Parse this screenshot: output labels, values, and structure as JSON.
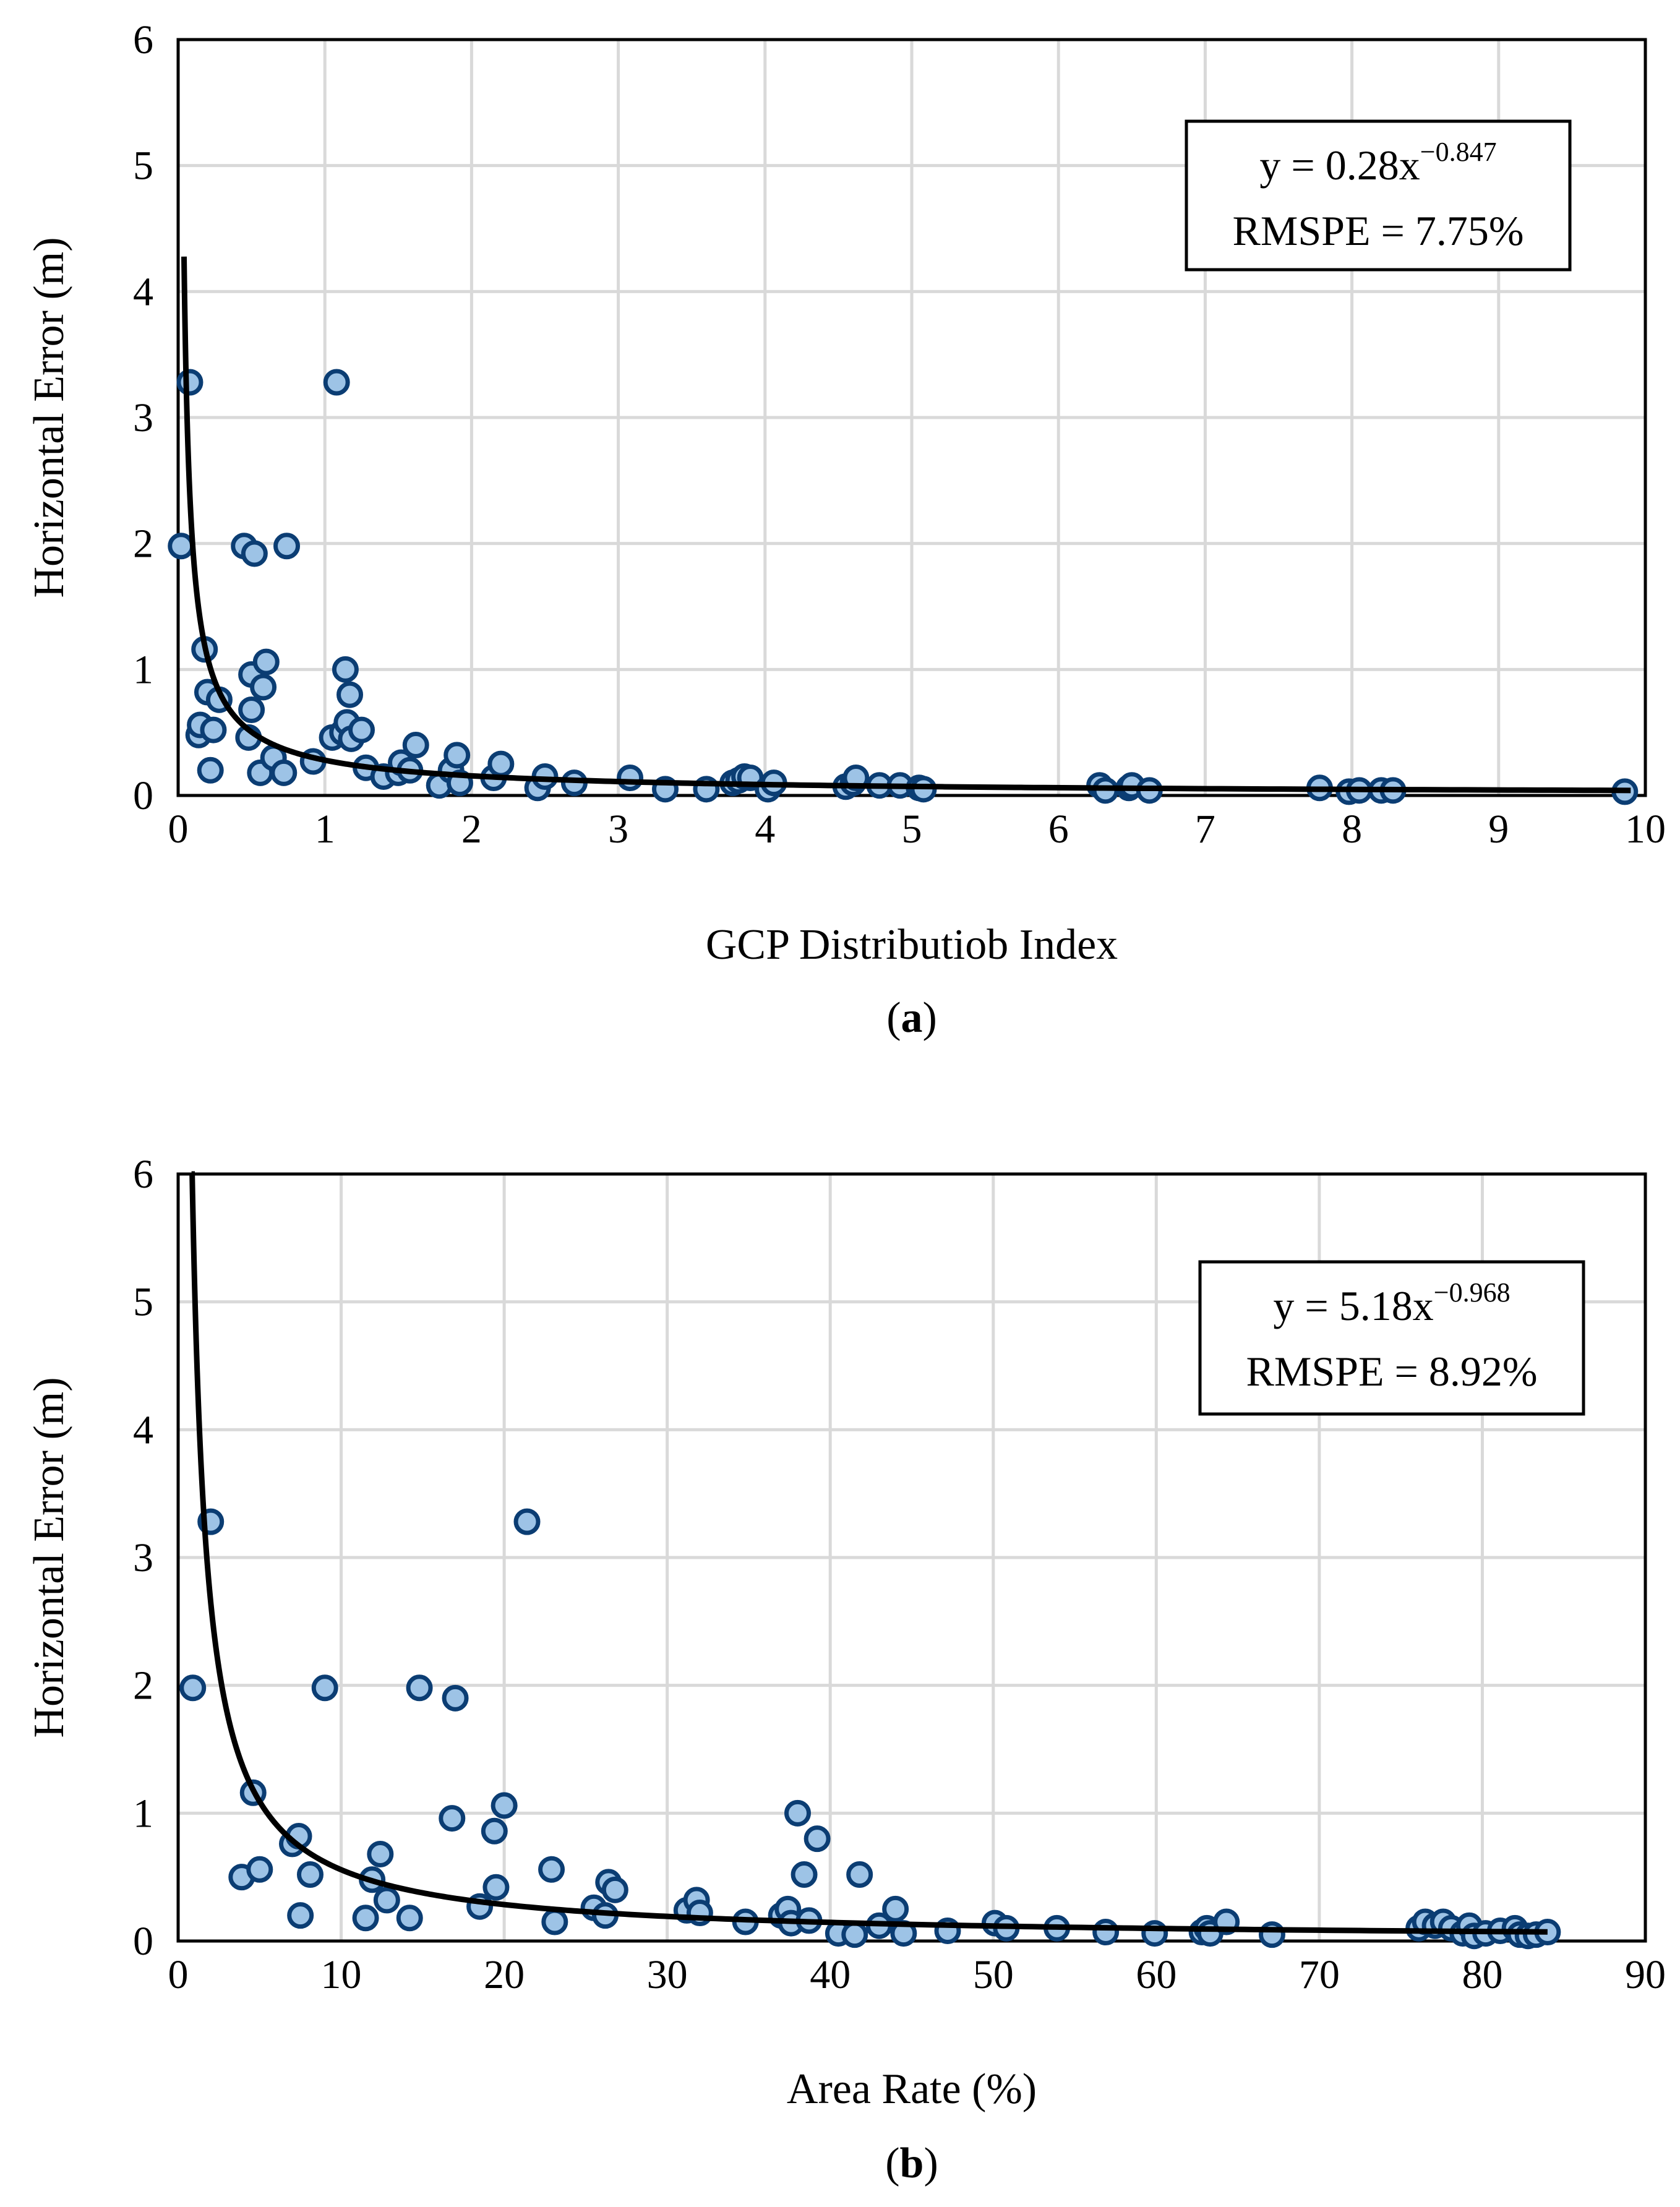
{
  "chart_data": [
    {
      "type": "scatter",
      "panel_label": "a",
      "xlabel": "GCP Distributiob Index",
      "ylabel": "Horizontal Error (m)",
      "xlim": [
        0,
        10
      ],
      "ylim": [
        0,
        6
      ],
      "xticks": [
        "0",
        "1",
        "2",
        "3",
        "4",
        "5",
        "6",
        "7",
        "8",
        "9",
        "10"
      ],
      "yticks": [
        "0",
        "1",
        "2",
        "3",
        "4",
        "5",
        "6"
      ],
      "grid": true,
      "equation_main": "y = 0.28x",
      "equation_exp": "−0.847",
      "rmspe": "RMSPE = 7.75%",
      "fit": {
        "model": "power",
        "a": 0.28,
        "b": -0.847,
        "x_range": [
          0.04,
          9.9
        ]
      },
      "points": [
        [
          0.02,
          1.98
        ],
        [
          0.08,
          3.28
        ],
        [
          0.14,
          0.48
        ],
        [
          0.15,
          0.56
        ],
        [
          0.18,
          1.16
        ],
        [
          0.2,
          0.82
        ],
        [
          0.22,
          0.2
        ],
        [
          0.24,
          0.52
        ],
        [
          0.28,
          0.76
        ],
        [
          0.45,
          1.98
        ],
        [
          0.48,
          0.46
        ],
        [
          0.5,
          0.96
        ],
        [
          0.5,
          0.68
        ],
        [
          0.52,
          1.92
        ],
        [
          0.56,
          0.18
        ],
        [
          0.58,
          0.86
        ],
        [
          0.6,
          1.06
        ],
        [
          0.65,
          0.3
        ],
        [
          0.72,
          0.18
        ],
        [
          0.74,
          1.98
        ],
        [
          0.92,
          0.27
        ],
        [
          1.05,
          0.46
        ],
        [
          1.08,
          3.28
        ],
        [
          1.12,
          0.5
        ],
        [
          1.14,
          1.0
        ],
        [
          1.15,
          0.58
        ],
        [
          1.17,
          0.8
        ],
        [
          1.18,
          0.45
        ],
        [
          1.25,
          0.52
        ],
        [
          1.28,
          0.22
        ],
        [
          1.4,
          0.15
        ],
        [
          1.5,
          0.18
        ],
        [
          1.52,
          0.26
        ],
        [
          1.58,
          0.2
        ],
        [
          1.62,
          0.4
        ],
        [
          1.78,
          0.08
        ],
        [
          1.86,
          0.2
        ],
        [
          1.9,
          0.32
        ],
        [
          1.92,
          0.1
        ],
        [
          2.15,
          0.14
        ],
        [
          2.2,
          0.25
        ],
        [
          2.45,
          0.06
        ],
        [
          2.5,
          0.15
        ],
        [
          2.7,
          0.1
        ],
        [
          3.08,
          0.14
        ],
        [
          3.32,
          0.05
        ],
        [
          3.6,
          0.05
        ],
        [
          3.78,
          0.1
        ],
        [
          3.82,
          0.12
        ],
        [
          3.86,
          0.15
        ],
        [
          3.9,
          0.14
        ],
        [
          4.02,
          0.05
        ],
        [
          4.06,
          0.1
        ],
        [
          4.55,
          0.07
        ],
        [
          4.6,
          0.1
        ],
        [
          4.62,
          0.14
        ],
        [
          4.78,
          0.08
        ],
        [
          4.92,
          0.08
        ],
        [
          5.05,
          0.06
        ],
        [
          5.08,
          0.05
        ],
        [
          6.28,
          0.08
        ],
        [
          6.32,
          0.04
        ],
        [
          6.48,
          0.06
        ],
        [
          6.5,
          0.08
        ],
        [
          6.62,
          0.04
        ],
        [
          7.78,
          0.06
        ],
        [
          7.98,
          0.03
        ],
        [
          8.05,
          0.04
        ],
        [
          8.2,
          0.04
        ],
        [
          8.28,
          0.04
        ],
        [
          9.86,
          0.03
        ]
      ]
    },
    {
      "type": "scatter",
      "panel_label": "b",
      "xlabel": "Area Rate (%)",
      "ylabel": "Horizontal Error (m)",
      "xlim": [
        0,
        90
      ],
      "ylim": [
        0,
        6
      ],
      "xticks": [
        "0",
        "10",
        "20",
        "30",
        "40",
        "50",
        "60",
        "70",
        "80",
        "90"
      ],
      "yticks": [
        "0",
        "1",
        "2",
        "3",
        "4",
        "5",
        "6"
      ],
      "grid": true,
      "equation_main": "y = 5.18x",
      "equation_exp": "−0.968",
      "rmspe": "RMSPE = 8.92%",
      "fit": {
        "model": "power",
        "a": 5.18,
        "b": -0.968,
        "x_range": [
          0.82,
          84
        ]
      },
      "points": [
        [
          0.9,
          1.98
        ],
        [
          2.0,
          3.28
        ],
        [
          3.9,
          0.5
        ],
        [
          4.6,
          1.16
        ],
        [
          5.0,
          0.56
        ],
        [
          7.0,
          0.76
        ],
        [
          7.4,
          0.82
        ],
        [
          7.5,
          0.2
        ],
        [
          8.1,
          0.52
        ],
        [
          9.0,
          1.98
        ],
        [
          11.5,
          0.18
        ],
        [
          11.9,
          0.48
        ],
        [
          12.4,
          0.68
        ],
        [
          12.8,
          0.32
        ],
        [
          14.2,
          0.18
        ],
        [
          14.8,
          1.98
        ],
        [
          16.8,
          0.96
        ],
        [
          17.0,
          1.9
        ],
        [
          18.5,
          0.27
        ],
        [
          19.4,
          0.86
        ],
        [
          19.5,
          0.42
        ],
        [
          20.0,
          1.06
        ],
        [
          21.4,
          3.28
        ],
        [
          22.9,
          0.56
        ],
        [
          23.1,
          0.15
        ],
        [
          25.5,
          0.26
        ],
        [
          26.2,
          0.2
        ],
        [
          26.4,
          0.46
        ],
        [
          26.8,
          0.4
        ],
        [
          31.2,
          0.24
        ],
        [
          31.8,
          0.32
        ],
        [
          32.0,
          0.22
        ],
        [
          34.8,
          0.15
        ],
        [
          37.0,
          0.2
        ],
        [
          37.4,
          0.25
        ],
        [
          37.6,
          0.14
        ],
        [
          38.0,
          1.0
        ],
        [
          38.4,
          0.52
        ],
        [
          38.7,
          0.16
        ],
        [
          39.2,
          0.8
        ],
        [
          40.5,
          0.06
        ],
        [
          41.5,
          0.05
        ],
        [
          41.8,
          0.52
        ],
        [
          43.0,
          0.12
        ],
        [
          44.0,
          0.25
        ],
        [
          44.5,
          0.06
        ],
        [
          47.2,
          0.08
        ],
        [
          50.1,
          0.14
        ],
        [
          50.8,
          0.1
        ],
        [
          53.9,
          0.1
        ],
        [
          56.9,
          0.07
        ],
        [
          59.9,
          0.06
        ],
        [
          62.8,
          0.07
        ],
        [
          63.1,
          0.1
        ],
        [
          63.3,
          0.06
        ],
        [
          64.3,
          0.15
        ],
        [
          67.1,
          0.05
        ],
        [
          76.1,
          0.1
        ],
        [
          76.5,
          0.15
        ],
        [
          77.1,
          0.12
        ],
        [
          77.6,
          0.15
        ],
        [
          78.1,
          0.1
        ],
        [
          78.8,
          0.06
        ],
        [
          79.2,
          0.12
        ],
        [
          79.5,
          0.04
        ],
        [
          80.2,
          0.06
        ],
        [
          81.1,
          0.08
        ],
        [
          82.0,
          0.1
        ],
        [
          82.3,
          0.05
        ],
        [
          82.8,
          0.04
        ],
        [
          83.3,
          0.05
        ],
        [
          84.0,
          0.07
        ]
      ]
    }
  ]
}
